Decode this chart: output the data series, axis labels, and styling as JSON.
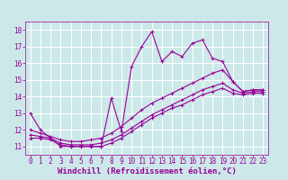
{
  "background_color": "#cce8e8",
  "grid_color": "#ffffff",
  "line_color": "#990099",
  "xlabel": "Windchill (Refroidissement éolien,°C)",
  "xlabel_fontsize": 6.5,
  "tick_fontsize": 5.5,
  "xlim": [
    -0.5,
    23.5
  ],
  "ylim": [
    10.5,
    18.5
  ],
  "yticks": [
    11,
    12,
    13,
    14,
    15,
    16,
    17,
    18
  ],
  "xticks": [
    0,
    1,
    2,
    3,
    4,
    5,
    6,
    7,
    8,
    9,
    10,
    11,
    12,
    13,
    14,
    15,
    16,
    17,
    18,
    19,
    20,
    21,
    22,
    23
  ],
  "series": [
    {
      "x": [
        0,
        1,
        2,
        3,
        4,
        5,
        6,
        7,
        8,
        9,
        10,
        11,
        12,
        13,
        14,
        15,
        16,
        17,
        18,
        19,
        20,
        21,
        22,
        23
      ],
      "y": [
        13.0,
        12.0,
        11.5,
        11.0,
        11.0,
        11.0,
        11.0,
        11.0,
        13.9,
        11.9,
        15.8,
        17.0,
        17.9,
        16.1,
        16.7,
        16.4,
        17.2,
        17.4,
        16.3,
        16.1,
        14.9,
        14.3,
        14.4,
        14.4
      ]
    },
    {
      "x": [
        0,
        1,
        2,
        3,
        4,
        5,
        6,
        7,
        8,
        9,
        10,
        11,
        12,
        13,
        14,
        15,
        16,
        17,
        18,
        19,
        20,
        21,
        22,
        23
      ],
      "y": [
        12.0,
        11.8,
        11.6,
        11.4,
        11.3,
        11.3,
        11.4,
        11.5,
        11.8,
        12.2,
        12.7,
        13.2,
        13.6,
        13.9,
        14.2,
        14.5,
        14.8,
        15.1,
        15.4,
        15.6,
        14.9,
        14.3,
        14.4,
        14.4
      ]
    },
    {
      "x": [
        0,
        1,
        2,
        3,
        4,
        5,
        6,
        7,
        8,
        9,
        10,
        11,
        12,
        13,
        14,
        15,
        16,
        17,
        18,
        19,
        20,
        21,
        22,
        23
      ],
      "y": [
        11.7,
        11.6,
        11.5,
        11.2,
        11.1,
        11.1,
        11.1,
        11.2,
        11.4,
        11.7,
        12.1,
        12.5,
        12.9,
        13.2,
        13.5,
        13.8,
        14.1,
        14.4,
        14.6,
        14.8,
        14.4,
        14.2,
        14.3,
        14.3
      ]
    },
    {
      "x": [
        0,
        1,
        2,
        3,
        4,
        5,
        6,
        7,
        8,
        9,
        10,
        11,
        12,
        13,
        14,
        15,
        16,
        17,
        18,
        19,
        20,
        21,
        22,
        23
      ],
      "y": [
        11.5,
        11.5,
        11.4,
        11.1,
        11.0,
        11.0,
        11.0,
        11.0,
        11.2,
        11.5,
        11.9,
        12.3,
        12.7,
        13.0,
        13.3,
        13.5,
        13.8,
        14.1,
        14.3,
        14.5,
        14.2,
        14.1,
        14.2,
        14.2
      ]
    }
  ]
}
